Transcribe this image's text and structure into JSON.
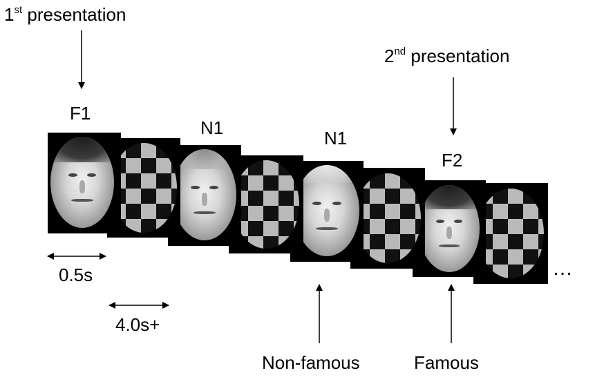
{
  "labels": {
    "first_presentation": {
      "pre": "1",
      "sup": "st",
      "post": " presentation"
    },
    "second_presentation": {
      "pre": "2",
      "sup": "nd",
      "post": " presentation"
    },
    "f1": "F1",
    "n1_a": "N1",
    "n1_b": "N1",
    "f2": "F2",
    "duration_stimulus": "0.5s",
    "duration_interval": "4.0s+",
    "non_famous": "Non-famous",
    "famous": "Famous",
    "continuation": "…"
  }
}
